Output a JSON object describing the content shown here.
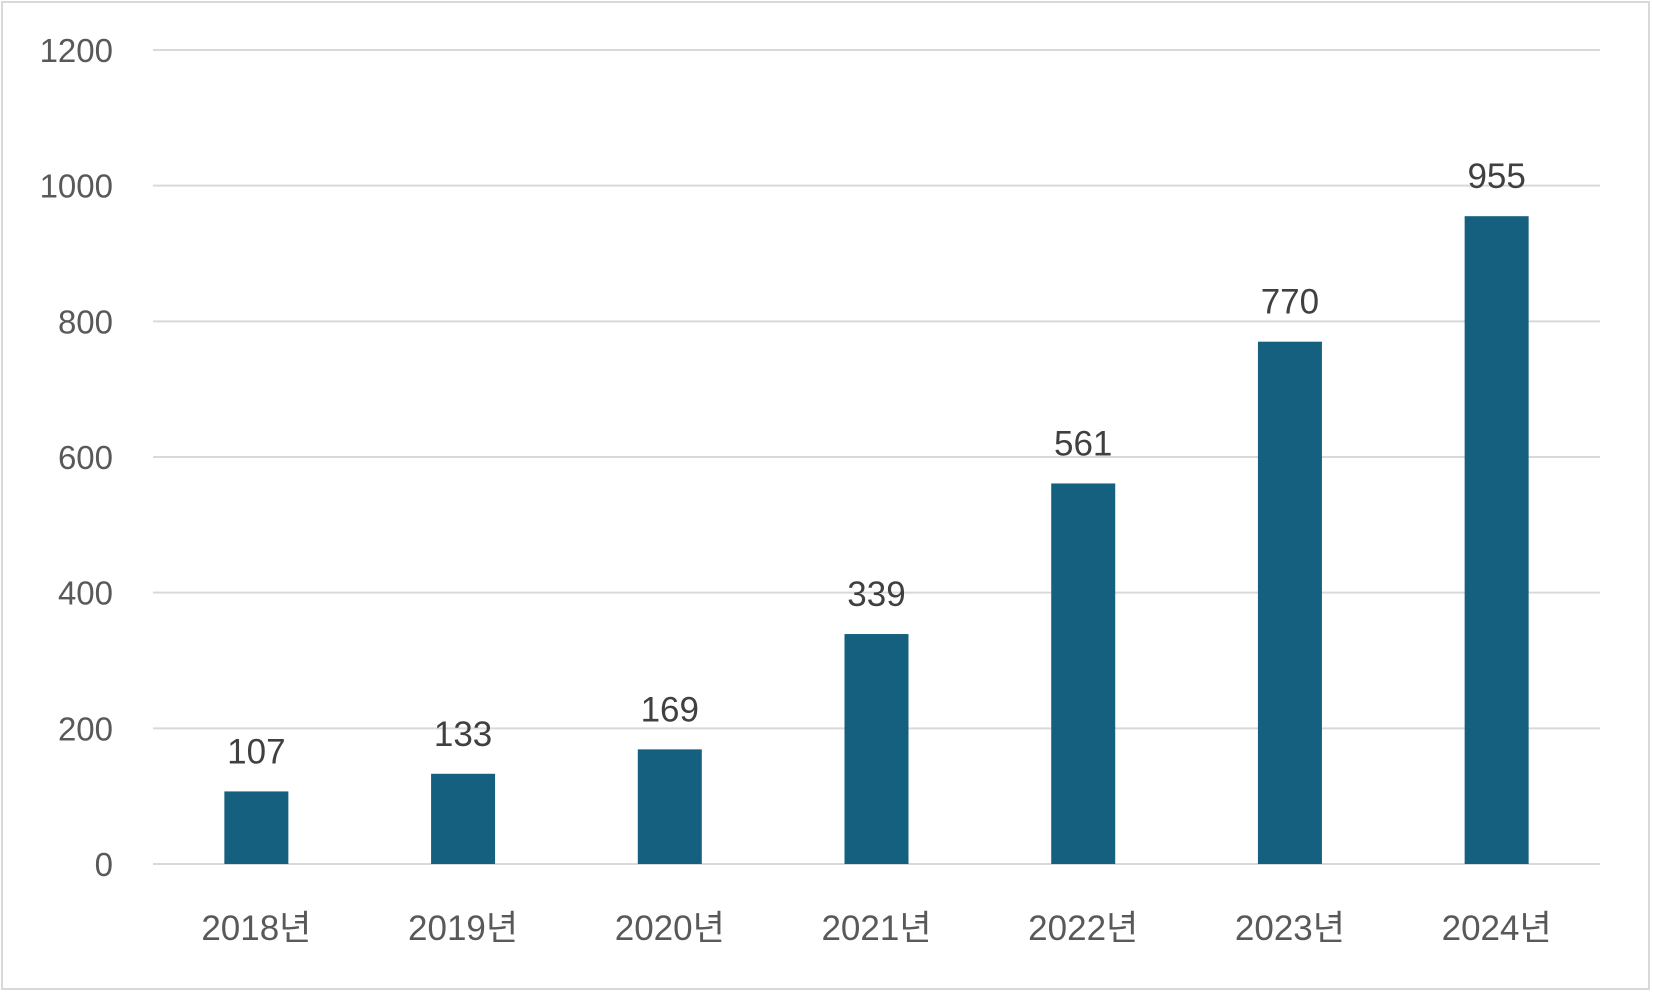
{
  "chart_data": {
    "type": "bar",
    "title": "",
    "xlabel": "",
    "ylabel": "",
    "categories": [
      "2018년",
      "2019년",
      "2020년",
      "2021년",
      "2022년",
      "2023년",
      "2024년"
    ],
    "values": [
      107,
      133,
      169,
      339,
      561,
      770,
      955
    ],
    "ylim": [
      0,
      1200
    ],
    "yticks": [
      "0",
      "200",
      "400",
      "600",
      "800",
      "1000",
      "1200"
    ],
    "grid": true,
    "legend": "none",
    "data_labels": true,
    "bar_color": "#16607f",
    "gridline_color": "#d9d9d9"
  }
}
